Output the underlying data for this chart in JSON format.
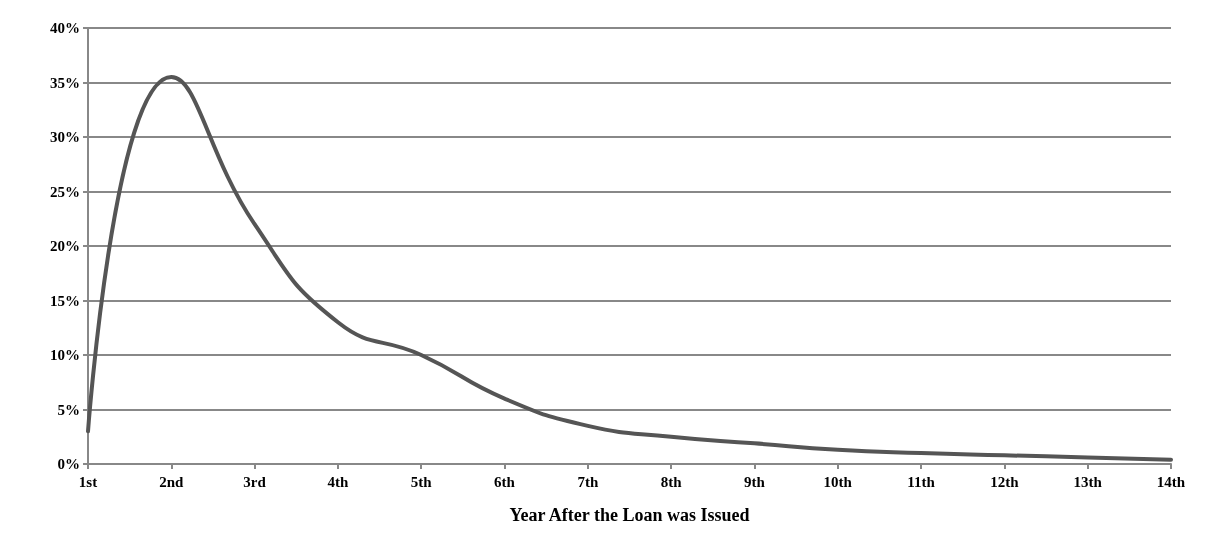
{
  "chart_data": {
    "type": "line",
    "xlabel": "Year After the Loan was Issued",
    "categories": [
      "1st",
      "2nd",
      "3rd",
      "4th",
      "5th",
      "6th",
      "7th",
      "8th",
      "9th",
      "10th",
      "11th",
      "12th",
      "13th",
      "14th"
    ],
    "series": [
      {
        "color": "#555555",
        "values": [
          3,
          35.5,
          22,
          13,
          10,
          6,
          3.5,
          2.5,
          1.9,
          1.3,
          1.0,
          0.8,
          0.6,
          0.4
        ]
      }
    ],
    "ylim": [
      0,
      40
    ],
    "yticks": [
      {
        "value": 0,
        "label": "0%"
      },
      {
        "value": 5,
        "label": "5%"
      },
      {
        "value": 10,
        "label": "10%"
      },
      {
        "value": 15,
        "label": "15%"
      },
      {
        "value": 20,
        "label": "20%"
      },
      {
        "value": 25,
        "label": "25%"
      },
      {
        "value": 30,
        "label": "30%"
      },
      {
        "value": 35,
        "label": "35%"
      },
      {
        "value": 40,
        "label": "40%"
      }
    ],
    "grid": "y",
    "marker": "none",
    "line_style": "solid"
  }
}
